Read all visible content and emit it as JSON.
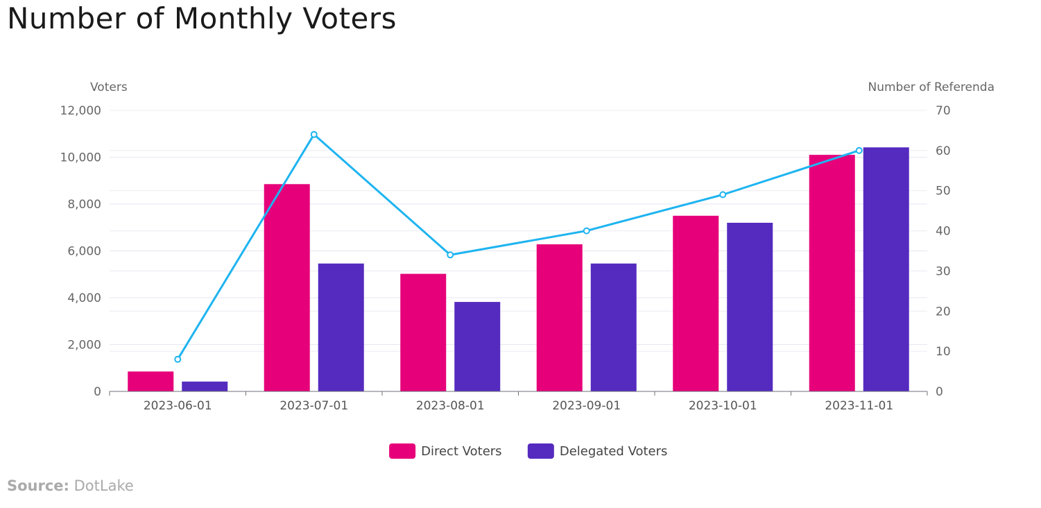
{
  "title": "Number of Monthly Voters",
  "source": {
    "label": "Source:",
    "value": "DotLake"
  },
  "chart_data": {
    "type": "bar",
    "categories": [
      "2023-06-01",
      "2023-07-01",
      "2023-08-01",
      "2023-09-01",
      "2023-10-01",
      "2023-11-01"
    ],
    "series": [
      {
        "name": "Direct Voters",
        "type": "bar",
        "axis": "left",
        "color": "#e6007a",
        "values": [
          850,
          8850,
          5020,
          6280,
          7500,
          10100
        ]
      },
      {
        "name": "Delegated Voters",
        "type": "bar",
        "axis": "left",
        "color": "#552bbf",
        "values": [
          420,
          5460,
          3820,
          5460,
          7200,
          10420
        ]
      },
      {
        "type": "line",
        "axis": "right",
        "color": "#1eb4f0",
        "values": [
          8,
          64,
          34,
          40,
          49,
          60
        ]
      }
    ],
    "y_left": {
      "label": "Voters",
      "ylim": [
        0,
        12000
      ],
      "ticks": [
        0,
        2000,
        4000,
        6000,
        8000,
        10000,
        12000
      ],
      "tick_labels": [
        "0",
        "2,000",
        "4,000",
        "6,000",
        "8,000",
        "10,000",
        "12,000"
      ]
    },
    "y_right": {
      "label": "Number of Referenda",
      "ylim": [
        0,
        70
      ],
      "ticks": [
        0,
        10,
        20,
        30,
        40,
        50,
        60,
        70
      ],
      "tick_labels": [
        "0",
        "10",
        "20",
        "30",
        "40",
        "50",
        "60",
        "70"
      ]
    },
    "grid": true,
    "legend": "bottom-center"
  }
}
